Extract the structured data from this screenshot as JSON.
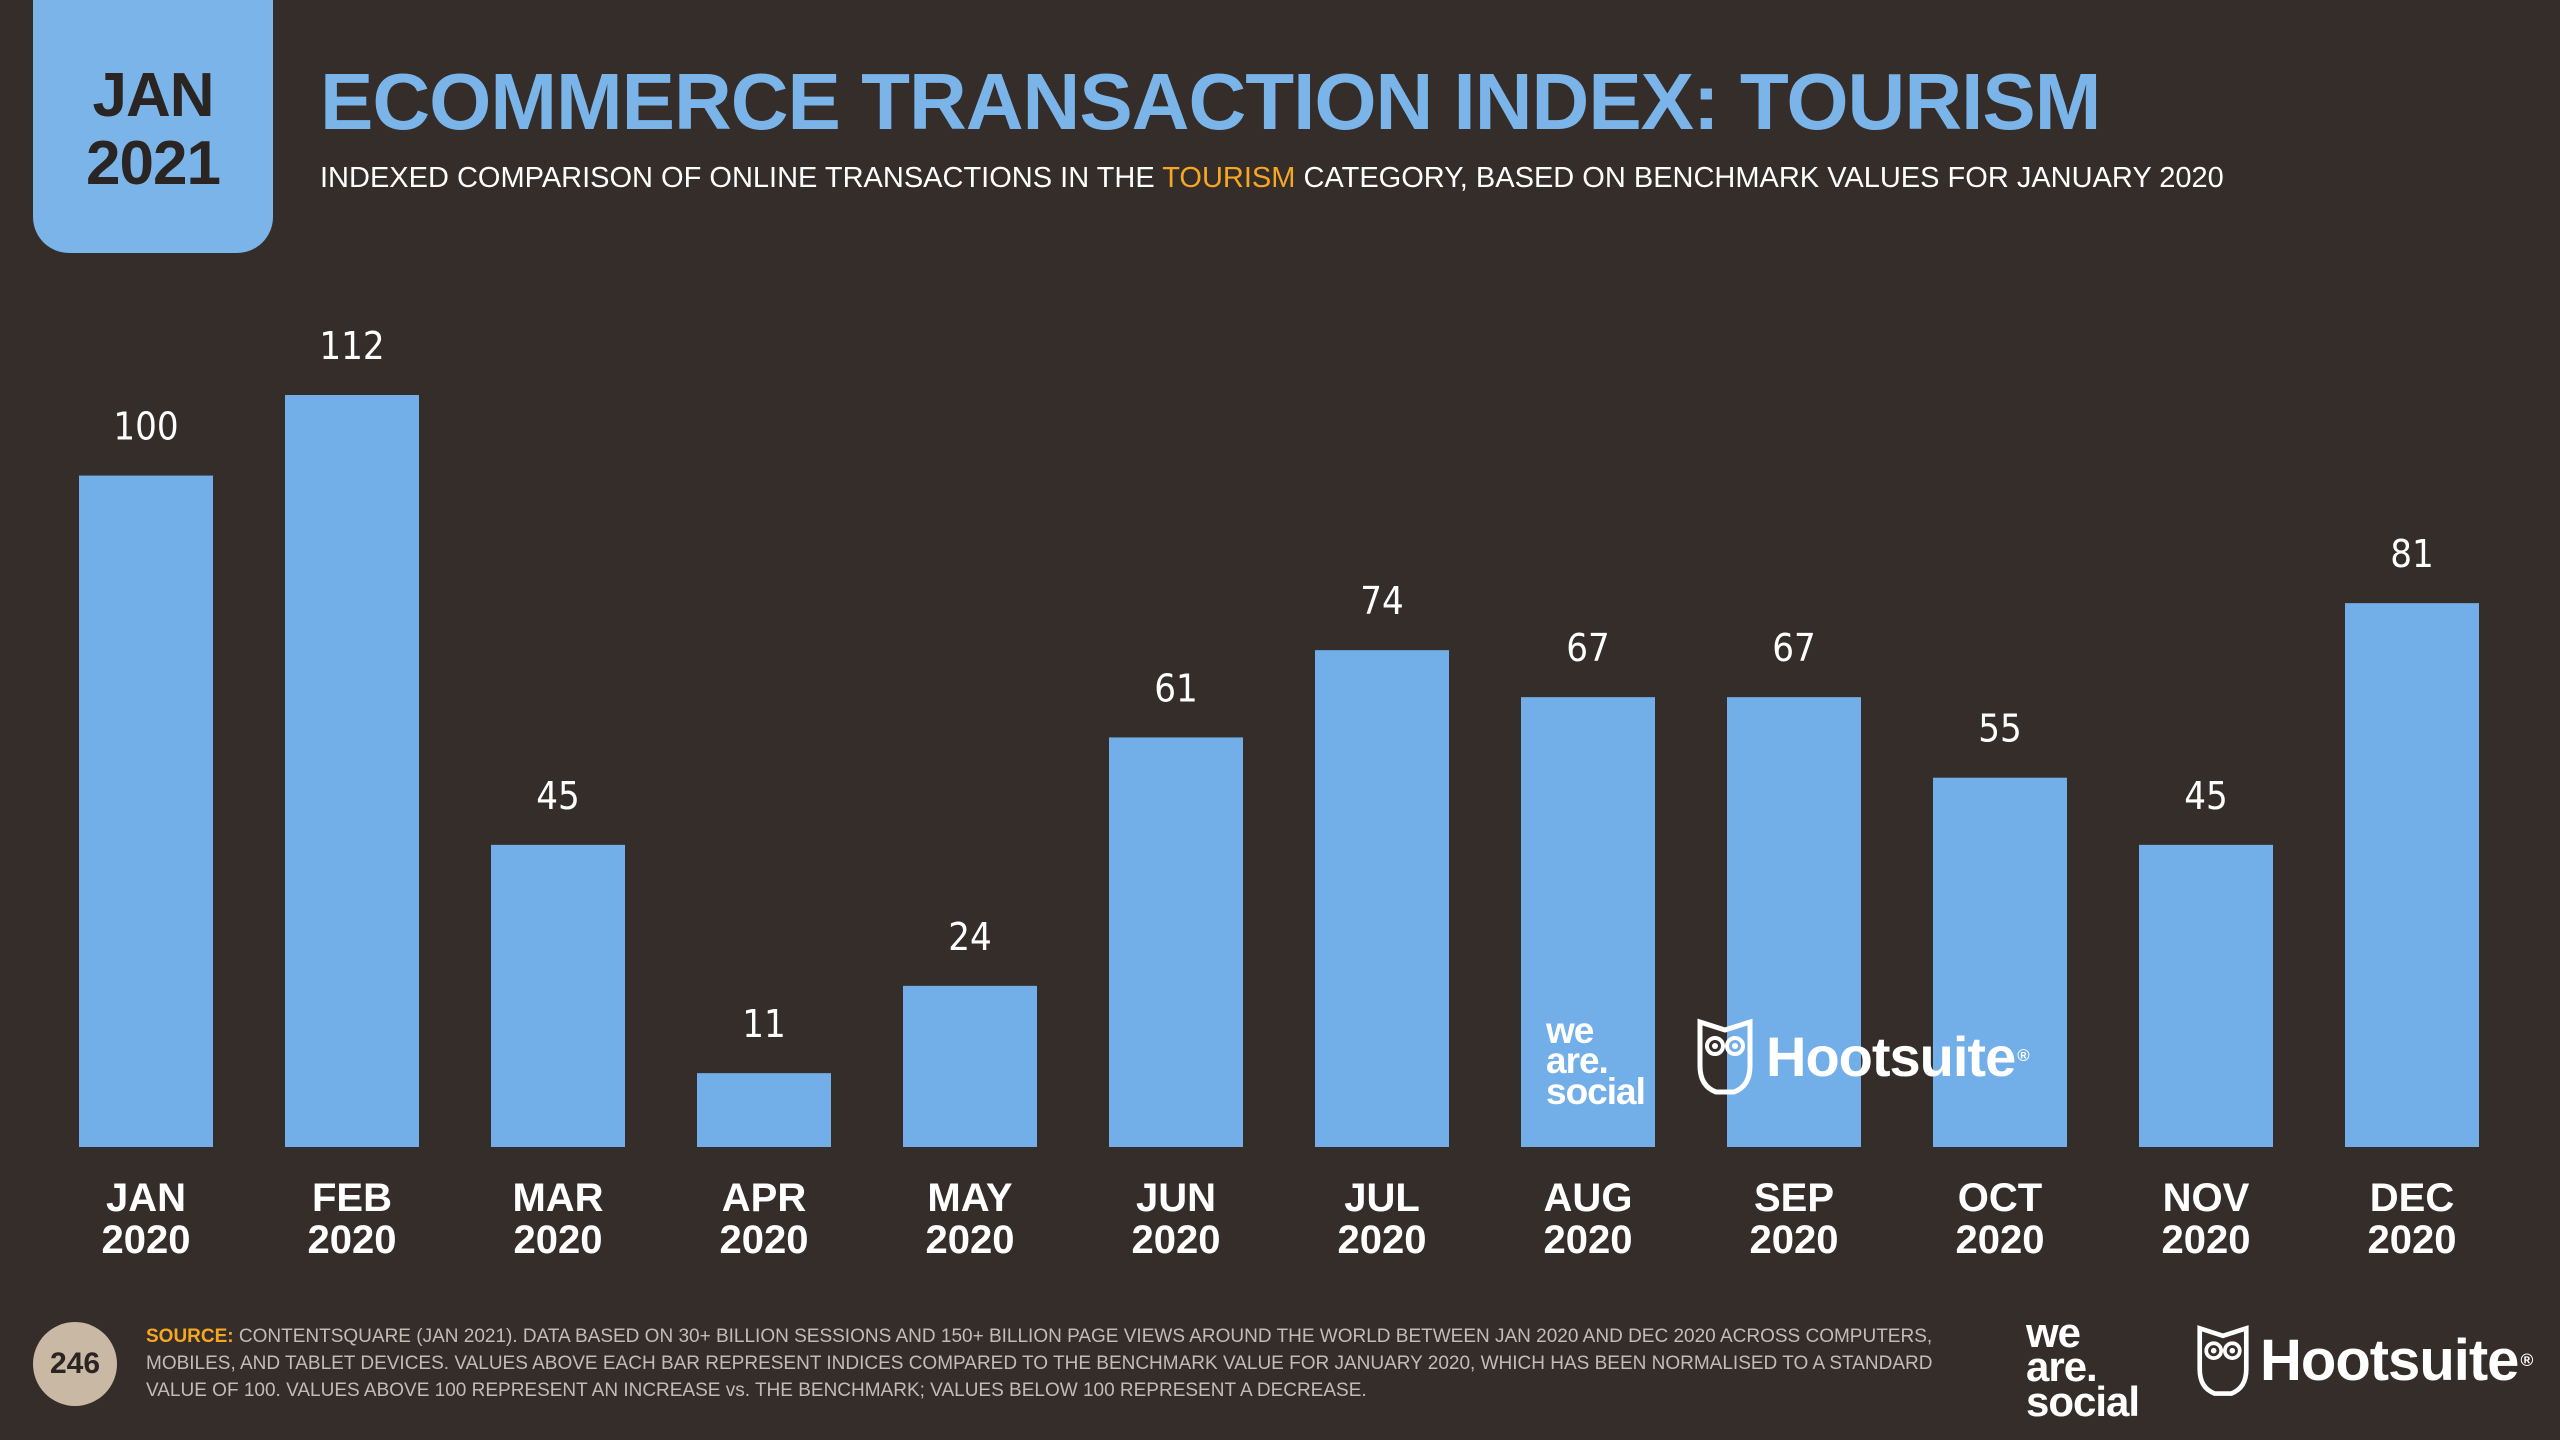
{
  "badge": {
    "month": "JAN",
    "year": "2021"
  },
  "title": "ECOMMERCE TRANSACTION INDEX: TOURISM",
  "subtitle": {
    "before": "INDEXED COMPARISON OF ONLINE TRANSACTIONS IN THE ",
    "highlight": "TOURISM",
    "after": " CATEGORY, BASED ON BENCHMARK VALUES FOR JANUARY 2020"
  },
  "colors": {
    "background": "#352d29",
    "accent": "#7ab4e8",
    "bar": "#72aee8",
    "highlight": "#f5a623"
  },
  "chart_data": {
    "type": "bar",
    "title": "ECOMMERCE TRANSACTION INDEX: TOURISM",
    "xlabel": "",
    "ylabel": "",
    "ylim": [
      0,
      112
    ],
    "grid": false,
    "categories": [
      [
        "JAN",
        "2020"
      ],
      [
        "FEB",
        "2020"
      ],
      [
        "MAR",
        "2020"
      ],
      [
        "APR",
        "2020"
      ],
      [
        "MAY",
        "2020"
      ],
      [
        "JUN",
        "2020"
      ],
      [
        "JUL",
        "2020"
      ],
      [
        "AUG",
        "2020"
      ],
      [
        "SEP",
        "2020"
      ],
      [
        "OCT",
        "2020"
      ],
      [
        "NOV",
        "2020"
      ],
      [
        "DEC",
        "2020"
      ]
    ],
    "values": [
      100,
      112,
      45,
      11,
      24,
      61,
      74,
      67,
      67,
      55,
      45,
      81
    ]
  },
  "watermarks": {
    "we_are_social": [
      "we",
      "are.",
      "social"
    ],
    "hootsuite": "Hootsuite"
  },
  "footer": {
    "page_number": "246",
    "source_label": "SOURCE:",
    "source_text": " CONTENTSQUARE (JAN 2021). DATA BASED ON 30+ BILLION SESSIONS AND 150+ BILLION PAGE VIEWS AROUND THE WORLD BETWEEN JAN 2020 AND DEC 2020 ACROSS COMPUTERS, MOBILES, AND TABLET DEVICES. VALUES ABOVE EACH BAR REPRESENT INDICES COMPARED TO THE BENCHMARK VALUE FOR JANUARY 2020, WHICH HAS BEEN NORMALISED TO A STANDARD VALUE OF 100. VALUES ABOVE 100 REPRESENT AN INCREASE vs. THE BENCHMARK; VALUES BELOW 100 REPRESENT A DECREASE."
  }
}
